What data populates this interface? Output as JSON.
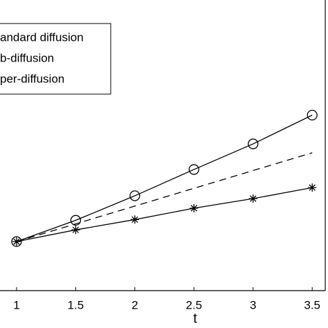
{
  "chart_data": {
    "type": "line",
    "x_label": "t",
    "x": [
      1,
      1.5,
      2,
      2.5,
      3,
      3.5
    ],
    "series": [
      {
        "name": "andard diffusion",
        "color": "#000000",
        "dash": true,
        "marker": "none",
        "values": [
          1,
          1.5,
          2,
          2.5,
          3,
          3.5
        ]
      },
      {
        "name": "b-diffusion",
        "color": "#000000",
        "dash": false,
        "marker": "star",
        "values": [
          1,
          1.33,
          1.62,
          1.94,
          2.21,
          2.52
        ]
      },
      {
        "name": "per-diffusion",
        "color": "#000000",
        "dash": false,
        "marker": "circle",
        "values": [
          1,
          1.6,
          2.29,
          3.03,
          3.75,
          4.56
        ]
      }
    ],
    "xlim": [
      0.86,
      3.61
    ],
    "xticks": [
      1,
      1.5,
      2,
      2.5,
      3,
      3.5
    ],
    "ylim": [
      -0.38,
      7.8
    ]
  }
}
